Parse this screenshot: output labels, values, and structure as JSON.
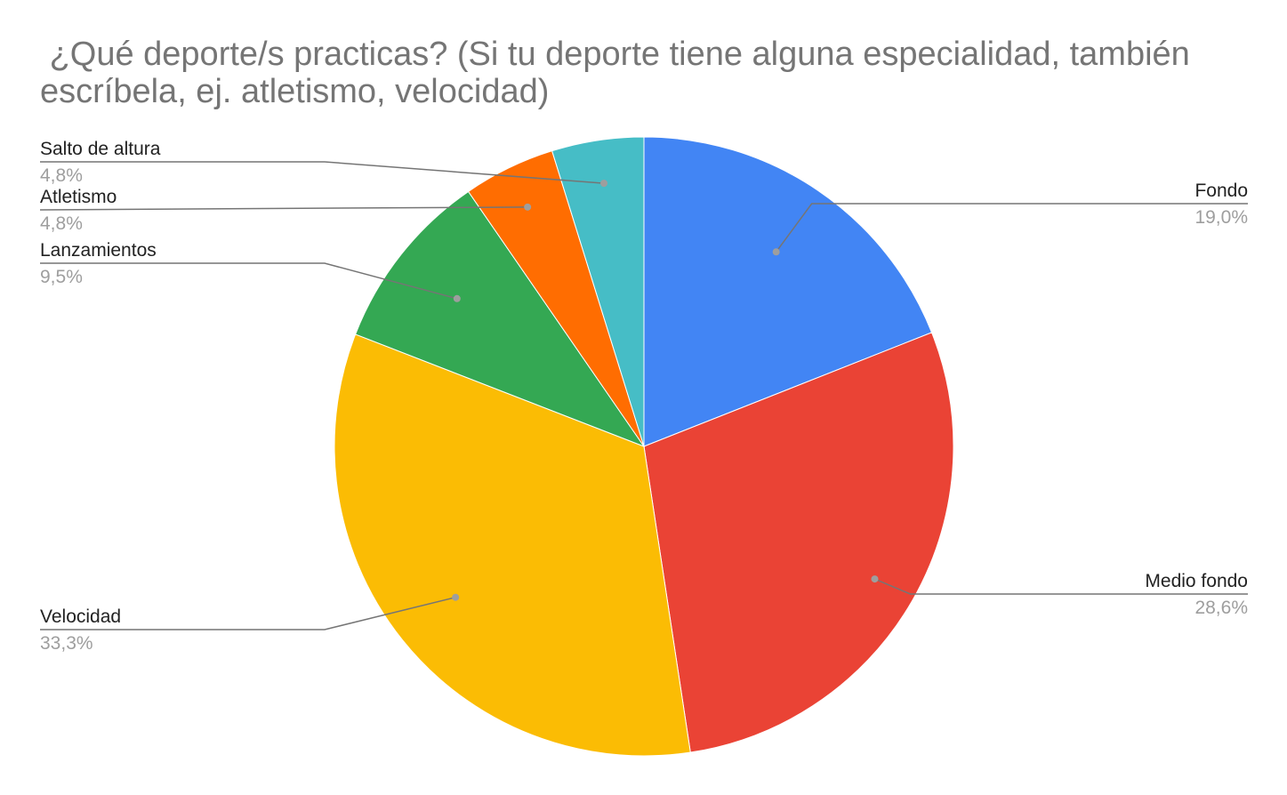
{
  "chart_data": {
    "type": "pie",
    "title": " ¿Qué deporte/s practicas? (Si tu deporte tiene alguna especialidad, también escríbela, ej. atletismo, velocidad)",
    "slices": [
      {
        "label": "Fondo",
        "value": 19.0,
        "percent_label": "19,0%",
        "color": "#4285f4"
      },
      {
        "label": "Medio fondo",
        "value": 28.6,
        "percent_label": "28,6%",
        "color": "#ea4335"
      },
      {
        "label": "Velocidad",
        "value": 33.3,
        "percent_label": "33,3%",
        "color": "#fbbc04"
      },
      {
        "label": "Lanzamientos",
        "value": 9.5,
        "percent_label": "9,5%",
        "color": "#34a853"
      },
      {
        "label": "Atletismo",
        "value": 4.8,
        "percent_label": "4,8%",
        "color": "#ff6d01"
      },
      {
        "label": "Salto de altura",
        "value": 4.8,
        "percent_label": "4,8%",
        "color": "#46bdc6"
      }
    ],
    "start_angle": "12 o'clock",
    "direction": "clockwise",
    "label_style": "external labels with leader lines"
  }
}
